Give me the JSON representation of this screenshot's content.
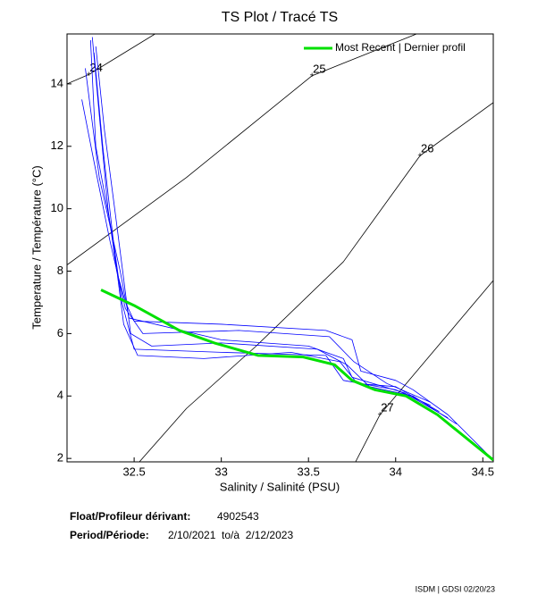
{
  "chart_data": {
    "type": "line",
    "title": "TS Plot / Tracé TS",
    "x_label": "Salinity / Salinité (PSU)",
    "y_label": "Temperature / Température (°C)",
    "xlim": [
      32.115,
      34.56
    ],
    "ylim": [
      1.89,
      15.6
    ],
    "xticks": [
      32.5,
      33,
      33.5,
      34,
      34.5
    ],
    "yticks": [
      2,
      4,
      6,
      8,
      10,
      12,
      14
    ],
    "legend": "upper right",
    "series": [
      {
        "name": "Most Recent | Dernier profil",
        "color": "#00e000",
        "x": [
          32.31,
          32.5,
          32.76,
          32.96,
          33.21,
          33.47,
          33.65,
          33.75,
          33.88,
          34.06,
          34.24,
          34.56
        ],
        "values": [
          7.4,
          6.9,
          6.1,
          5.7,
          5.3,
          5.25,
          5.0,
          4.5,
          4.2,
          4.0,
          3.4,
          1.95
        ]
      }
    ],
    "profiles": [
      {
        "color": "#0000ff",
        "x": [
          32.26,
          32.3,
          32.35,
          32.4,
          32.45,
          32.5,
          33.0,
          33.6,
          33.75,
          33.8,
          34.0,
          34.1,
          34.3,
          34.56
        ],
        "values": [
          15.5,
          13,
          10,
          8,
          7,
          6.4,
          6.3,
          6.1,
          5.8,
          4.8,
          4.5,
          4.2,
          3.4,
          1.95
        ]
      },
      {
        "color": "#0000ff",
        "x": [
          32.25,
          32.28,
          32.38,
          32.43,
          32.5,
          33.0,
          33.6,
          33.7,
          34.0,
          34.2
        ],
        "values": [
          15.4,
          12,
          9,
          7,
          5.5,
          5.4,
          5.3,
          4.5,
          4.2,
          3.7
        ]
      },
      {
        "color": "#0000ff",
        "x": [
          32.22,
          32.3,
          32.42,
          32.47,
          33.0,
          33.5,
          33.7,
          33.75,
          34.05,
          34.3
        ],
        "values": [
          14.5,
          11,
          8,
          6.5,
          5.8,
          5.6,
          5.2,
          4.6,
          4.1,
          3.3
        ]
      },
      {
        "color": "#0000ff",
        "x": [
          32.28,
          32.33,
          32.4,
          32.48,
          32.6,
          33.0,
          33.55,
          33.72,
          33.85,
          34.1,
          34.35
        ],
        "values": [
          15.2,
          12.5,
          9.5,
          6.0,
          5.6,
          5.7,
          5.5,
          5.0,
          4.3,
          4.0,
          3.1
        ]
      },
      {
        "color": "#0000ff",
        "x": [
          32.2,
          32.27,
          32.36,
          32.45,
          32.55,
          33.1,
          33.62,
          33.76,
          33.95,
          34.2
        ],
        "values": [
          13.5,
          11.5,
          9.0,
          6.8,
          6.0,
          6.1,
          5.9,
          5.1,
          4.4,
          3.8
        ]
      },
      {
        "color": "#0000ff",
        "x": [
          32.27,
          32.32,
          32.39,
          32.44,
          32.52,
          32.9,
          33.4,
          33.68,
          33.78,
          34.0,
          34.25
        ],
        "values": [
          15.0,
          12.0,
          8.5,
          6.3,
          5.3,
          5.2,
          5.4,
          5.1,
          4.4,
          4.3,
          3.5
        ]
      }
    ],
    "contours": [
      {
        "label": 24,
        "x": [
          32.115,
          32.24,
          32.62
        ],
        "values": [
          14,
          14.3,
          15.6
        ]
      },
      {
        "label": 25,
        "x": [
          32.115,
          32.8,
          33.52,
          34.12
        ],
        "values": [
          8.2,
          11.0,
          14.26,
          15.6
        ]
      },
      {
        "label": 26,
        "x": [
          32.53,
          32.8,
          33.2,
          33.7,
          34.14,
          34.56
        ],
        "values": [
          1.89,
          3.6,
          5.6,
          8.3,
          11.7,
          13.4
        ]
      },
      {
        "label": 27,
        "x": [
          33.77,
          33.91,
          34.56
        ],
        "values": [
          1.89,
          3.4,
          7.7
        ]
      }
    ]
  },
  "footer": {
    "float_label": "Float/Profileur dérivant:",
    "float_id": "4902543",
    "period_label": "Period/Période:",
    "period": "2/10/2021  to/à  2/12/2023",
    "credit": "ISDM | GDSI  02/20/23"
  }
}
